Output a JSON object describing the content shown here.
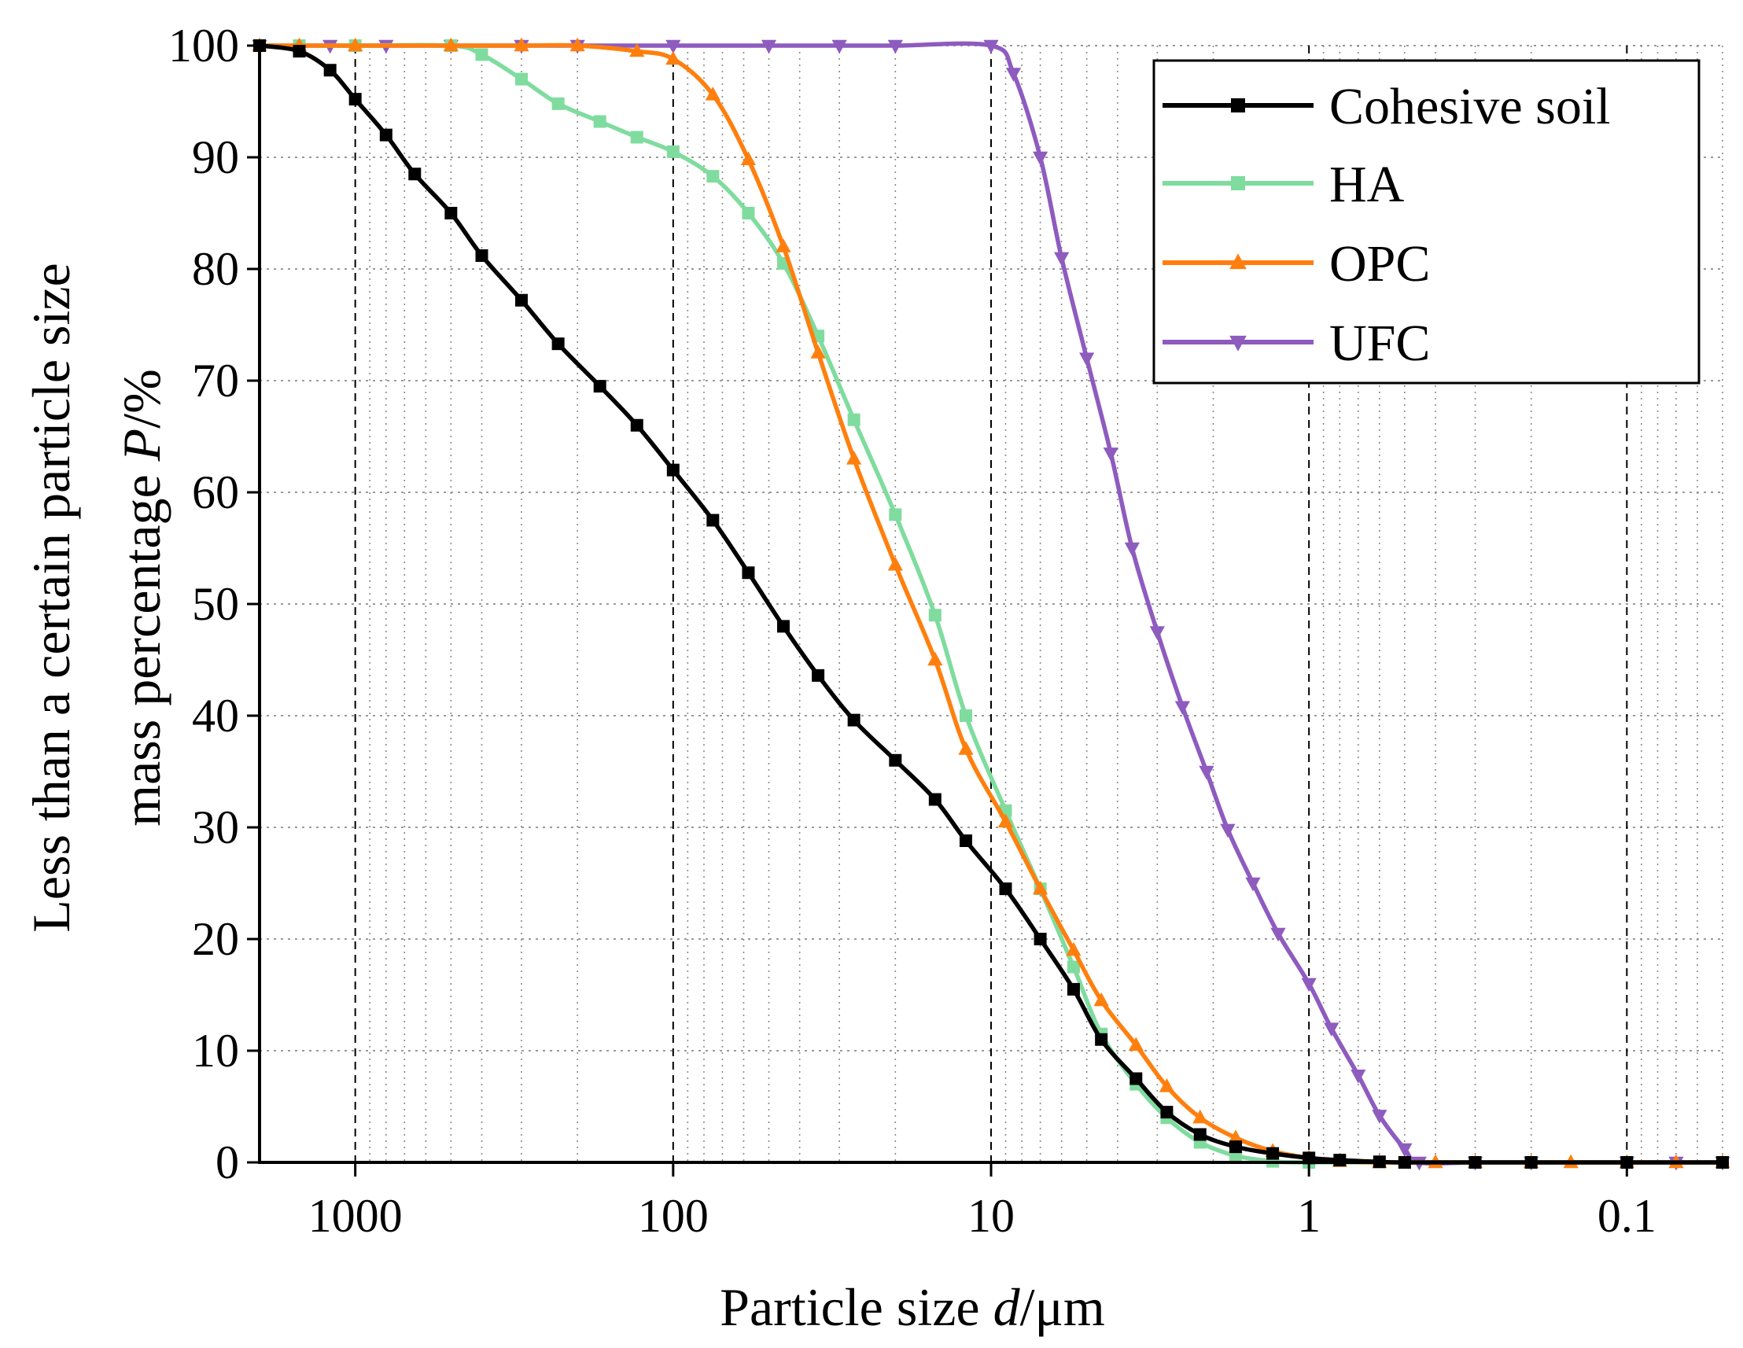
{
  "chart_data": {
    "type": "line",
    "x_scale": "log",
    "x_reversed": true,
    "xlabel_prefix": "Particle size ",
    "xlabel_var": "d",
    "xlabel_unit": "/μm",
    "ylabel_line1": "Less than a certain particle size",
    "ylabel_line2_prefix": "mass percentage ",
    "ylabel_line2_var": "P",
    "ylabel_line2_unit": "/%",
    "xlim": [
      2000,
      0.05
    ],
    "ylim": [
      0,
      100
    ],
    "x_ticks": [
      1000,
      100,
      10,
      1,
      0.1
    ],
    "x_tick_labels": [
      "1000",
      "100",
      "10",
      "1",
      "0.1"
    ],
    "y_ticks": [
      0,
      10,
      20,
      30,
      40,
      50,
      60,
      70,
      80,
      90,
      100
    ],
    "y_tick_labels": [
      "0",
      "10",
      "20",
      "30",
      "40",
      "50",
      "60",
      "70",
      "80",
      "90",
      "100"
    ],
    "grid": "dotted minor grid, dashed major verticals at decades",
    "legend_position": "top-right",
    "series": [
      {
        "name": "Cohesive soil",
        "color": "#000000",
        "marker": "square",
        "points": [
          [
            2000,
            100
          ],
          [
            1500,
            99.5
          ],
          [
            1200,
            97.8
          ],
          [
            1000,
            95.2
          ],
          [
            800,
            92
          ],
          [
            650,
            88.5
          ],
          [
            500,
            85
          ],
          [
            400,
            81.2
          ],
          [
            300,
            77.2
          ],
          [
            230,
            73.3
          ],
          [
            170,
            69.5
          ],
          [
            130,
            66
          ],
          [
            100,
            62
          ],
          [
            75,
            57.5
          ],
          [
            58,
            52.8
          ],
          [
            45,
            48
          ],
          [
            35,
            43.6
          ],
          [
            27,
            39.6
          ],
          [
            20,
            36
          ],
          [
            15,
            32.5
          ],
          [
            12,
            28.8
          ],
          [
            9,
            24.5
          ],
          [
            7,
            20
          ],
          [
            5.5,
            15.5
          ],
          [
            4.5,
            11
          ],
          [
            3.5,
            7.5
          ],
          [
            2.8,
            4.5
          ],
          [
            2.2,
            2.5
          ],
          [
            1.7,
            1.4
          ],
          [
            1.3,
            0.8
          ],
          [
            1,
            0.4
          ],
          [
            0.8,
            0.2
          ],
          [
            0.6,
            0.05
          ],
          [
            0.5,
            0
          ],
          [
            0.3,
            0
          ],
          [
            0.2,
            0
          ],
          [
            0.1,
            0
          ],
          [
            0.05,
            0
          ]
        ]
      },
      {
        "name": "HA",
        "color": "#7fdc9e",
        "marker": "square",
        "points": [
          [
            2000,
            100
          ],
          [
            1500,
            100
          ],
          [
            1000,
            100
          ],
          [
            500,
            100
          ],
          [
            400,
            99.2
          ],
          [
            300,
            97
          ],
          [
            230,
            94.8
          ],
          [
            170,
            93.2
          ],
          [
            130,
            91.8
          ],
          [
            100,
            90.5
          ],
          [
            75,
            88.3
          ],
          [
            58,
            85
          ],
          [
            45,
            80.5
          ],
          [
            35,
            74
          ],
          [
            27,
            66.5
          ],
          [
            20,
            58
          ],
          [
            15,
            49
          ],
          [
            12,
            40
          ],
          [
            9,
            31.5
          ],
          [
            7,
            24.5
          ],
          [
            5.5,
            17.5
          ],
          [
            4.5,
            11.5
          ],
          [
            3.5,
            7
          ],
          [
            2.8,
            4
          ],
          [
            2.2,
            1.8
          ],
          [
            1.7,
            0.6
          ],
          [
            1.3,
            0.1
          ],
          [
            1,
            0
          ],
          [
            0.5,
            0
          ],
          [
            0.2,
            0
          ],
          [
            0.1,
            0
          ],
          [
            0.05,
            0
          ]
        ]
      },
      {
        "name": "OPC",
        "color": "#ff7f0e",
        "marker": "triangle-up",
        "points": [
          [
            2000,
            100
          ],
          [
            1500,
            100
          ],
          [
            1000,
            100
          ],
          [
            500,
            100
          ],
          [
            300,
            100
          ],
          [
            200,
            100
          ],
          [
            130,
            99.5
          ],
          [
            100,
            98.8
          ],
          [
            75,
            95.6
          ],
          [
            58,
            89.8
          ],
          [
            45,
            82
          ],
          [
            35,
            72.5
          ],
          [
            27,
            63
          ],
          [
            20,
            53.5
          ],
          [
            15,
            45
          ],
          [
            12,
            37
          ],
          [
            9,
            30.5
          ],
          [
            7,
            24.5
          ],
          [
            5.5,
            19
          ],
          [
            4.5,
            14.5
          ],
          [
            3.5,
            10.5
          ],
          [
            2.8,
            6.8
          ],
          [
            2.2,
            4
          ],
          [
            1.7,
            2.2
          ],
          [
            1.3,
            1
          ],
          [
            1,
            0.4
          ],
          [
            0.8,
            0.1
          ],
          [
            0.6,
            0
          ],
          [
            0.4,
            0
          ],
          [
            0.3,
            0
          ],
          [
            0.2,
            0
          ],
          [
            0.15,
            0
          ],
          [
            0.1,
            0
          ],
          [
            0.07,
            0
          ],
          [
            0.05,
            0
          ]
        ]
      },
      {
        "name": "UFC",
        "color": "#8e5bbf",
        "marker": "triangle-down",
        "points": [
          [
            2000,
            100
          ],
          [
            1200,
            100
          ],
          [
            800,
            100
          ],
          [
            500,
            100
          ],
          [
            300,
            100
          ],
          [
            200,
            100
          ],
          [
            100,
            100
          ],
          [
            50,
            100
          ],
          [
            30,
            100
          ],
          [
            20,
            100
          ],
          [
            10,
            100
          ],
          [
            8.5,
            97.5
          ],
          [
            7,
            90
          ],
          [
            6,
            81
          ],
          [
            5,
            72
          ],
          [
            4.2,
            63.5
          ],
          [
            3.6,
            55
          ],
          [
            3,
            47.5
          ],
          [
            2.5,
            40.8
          ],
          [
            2.1,
            35
          ],
          [
            1.8,
            29.8
          ],
          [
            1.5,
            25
          ],
          [
            1.25,
            20.5
          ],
          [
            1,
            16
          ],
          [
            0.85,
            12
          ],
          [
            0.7,
            7.8
          ],
          [
            0.6,
            4.2
          ],
          [
            0.5,
            1.2
          ],
          [
            0.45,
            0
          ],
          [
            0.3,
            0
          ],
          [
            0.2,
            0
          ],
          [
            0.1,
            0
          ],
          [
            0.07,
            0
          ],
          [
            0.05,
            0
          ]
        ]
      }
    ]
  }
}
